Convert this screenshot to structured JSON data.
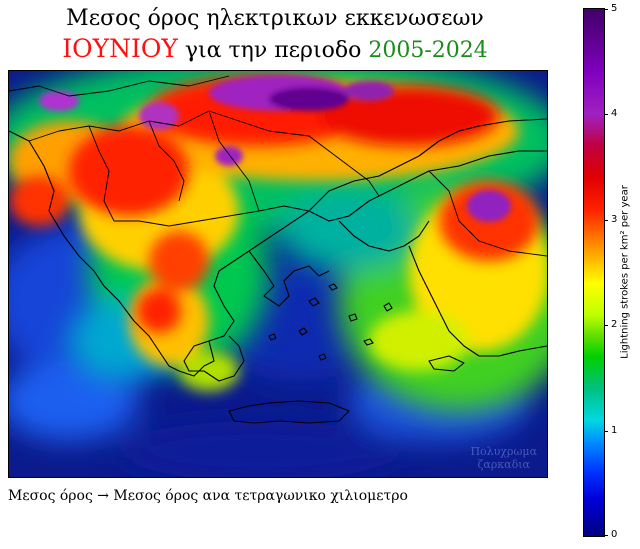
{
  "title": {
    "line1": "Μεσος όρος ηλεκτρικων εκκενωσεων",
    "line2_month": "ΙΟΥΝΙΟΥ",
    "line2_mid": " για την περιοδο ",
    "line2_years": "2005-2024"
  },
  "colors": {
    "month": "#ff1010",
    "years": "#1a8c1a",
    "sea_background": "#0b1a8c"
  },
  "watermark": {
    "line1": "Πολυχρωμα",
    "line2": "ζαρκαδια"
  },
  "caption": "Μεσος όρος → Μεσος όρος ανα τετραγωνικο χιλιομετρο",
  "colorbar": {
    "label": "Lightning strokes per km² per year",
    "ticks": [
      "0",
      "1",
      "2",
      "3",
      "4",
      "5"
    ],
    "min": 0,
    "max": 5,
    "colormap": "gist_ncar-like (navy → blue → cyan → green → yellow → orange → red → purple)"
  },
  "map": {
    "region": "Greece and Balkans",
    "coastlines": true,
    "borders": true
  }
}
